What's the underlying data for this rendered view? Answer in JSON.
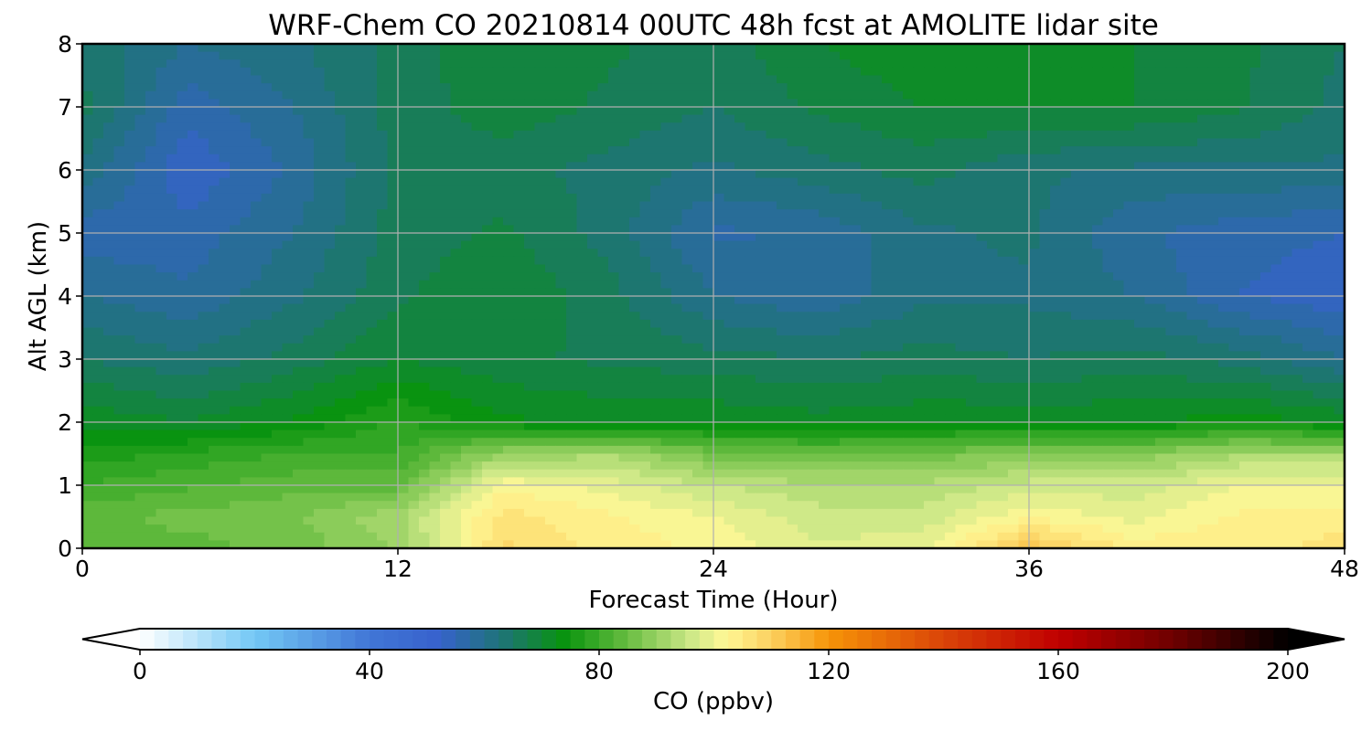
{
  "chart_data": {
    "type": "heatmap",
    "title": "WRF-Chem CO  20210814 00UTC 48h fcst at AMOLITE lidar site",
    "xlabel": "Forecast Time (Hour)",
    "ylabel": "Alt AGL (km)",
    "xlim": [
      0,
      48
    ],
    "ylim": [
      0,
      8
    ],
    "xticks": [
      0,
      12,
      24,
      36,
      48
    ],
    "yticks": [
      0,
      1,
      2,
      3,
      4,
      5,
      6,
      7,
      8
    ],
    "grid": true,
    "colorbar": {
      "label": "CO  (ppbv)",
      "range": [
        0,
        200
      ],
      "ticks": [
        0,
        40,
        80,
        120,
        160,
        200
      ],
      "extend": "both",
      "orientation": "horizontal"
    },
    "z_units": "ppbv",
    "z_samples": {
      "hours": [
        0,
        4,
        8,
        12,
        16,
        20,
        24,
        28,
        32,
        36,
        40,
        44,
        48
      ],
      "altitudes_km": [
        0,
        0.5,
        1,
        1.5,
        2,
        3,
        4,
        5,
        6,
        7,
        8
      ],
      "values": [
        [
          84,
          84,
          86,
          90,
          108,
          104,
          102,
          98,
          99,
          112,
          104,
          104,
          106
        ],
        [
          84,
          86,
          87,
          92,
          106,
          103,
          100,
          96,
          96,
          102,
          99,
          103,
          104
        ],
        [
          80,
          82,
          84,
          84,
          102,
          99,
          95,
          93,
          93,
          96,
          96,
          100,
          100
        ],
        [
          76,
          78,
          80,
          80,
          90,
          92,
          86,
          85,
          86,
          88,
          88,
          92,
          92
        ],
        [
          72,
          70,
          73,
          78,
          73,
          72,
          72,
          71,
          72,
          72,
          72,
          74,
          72
        ],
        [
          65,
          63,
          66,
          70,
          68,
          67,
          66,
          65,
          66,
          65,
          66,
          64,
          60
        ],
        [
          60,
          58,
          62,
          67,
          70,
          66,
          60,
          58,
          62,
          62,
          60,
          55,
          53
        ],
        [
          56,
          56,
          60,
          66,
          68,
          64,
          57,
          58,
          62,
          63,
          58,
          56,
          55
        ],
        [
          62,
          53,
          58,
          66,
          66,
          64,
          62,
          64,
          66,
          63,
          62,
          62,
          62
        ],
        [
          66,
          56,
          60,
          66,
          69,
          67,
          65,
          68,
          70,
          70,
          70,
          68,
          64
        ],
        [
          64,
          60,
          62,
          66,
          70,
          68,
          66,
          70,
          72,
          70,
          70,
          68,
          65
        ]
      ]
    }
  }
}
